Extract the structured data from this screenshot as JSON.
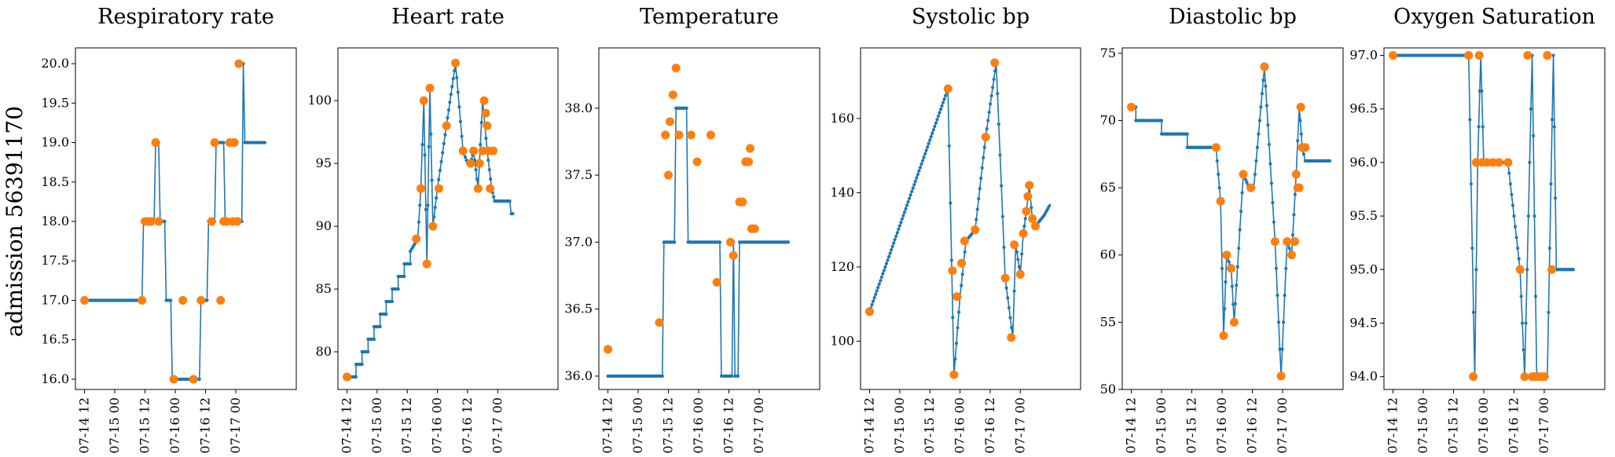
{
  "row_label": "admission 56391170",
  "x_tick_labels": [
    "07-14 12",
    "07-15 00",
    "07-15 12",
    "07-16 00",
    "07-16 12",
    "07-17 00"
  ],
  "colors": {
    "line": "#1f77b4",
    "observed": "#ff7f0e"
  },
  "chart_data": [
    {
      "type": "line",
      "title": "Respiratory rate",
      "ylim": [
        15.87,
        20.2
      ],
      "yticks": [
        16.0,
        16.5,
        17.0,
        17.5,
        18.0,
        18.5,
        19.0,
        19.5,
        20.0
      ],
      "series": [
        {
          "points": [
            [
              0,
              17
            ],
            [
              1.9,
              17
            ],
            [
              1.95,
              18
            ],
            [
              2.3,
              18
            ],
            [
              2.35,
              19
            ],
            [
              2.45,
              19
            ],
            [
              2.5,
              18
            ],
            [
              2.65,
              18
            ],
            [
              2.7,
              17
            ],
            [
              2.85,
              17
            ],
            [
              2.9,
              16
            ],
            [
              3.8,
              16
            ],
            [
              3.85,
              17
            ],
            [
              4.05,
              17
            ],
            [
              4.1,
              18
            ],
            [
              4.3,
              18
            ],
            [
              4.35,
              19
            ],
            [
              4.6,
              19
            ],
            [
              4.65,
              18
            ],
            [
              5.2,
              18
            ],
            [
              5.25,
              20
            ],
            [
              5.3,
              19
            ],
            [
              6.0,
              19
            ]
          ]
        }
      ],
      "observed": [
        [
          0,
          17
        ],
        [
          1.9,
          17
        ],
        [
          2.0,
          18
        ],
        [
          2.1,
          18
        ],
        [
          2.2,
          18
        ],
        [
          2.35,
          19
        ],
        [
          2.45,
          18
        ],
        [
          2.95,
          16
        ],
        [
          3.25,
          17
        ],
        [
          3.6,
          16
        ],
        [
          3.85,
          17
        ],
        [
          4.2,
          18
        ],
        [
          4.3,
          19
        ],
        [
          4.5,
          17
        ],
        [
          4.6,
          18
        ],
        [
          4.7,
          18
        ],
        [
          4.8,
          19
        ],
        [
          4.9,
          18
        ],
        [
          4.95,
          19
        ],
        [
          5.05,
          18
        ],
        [
          5.1,
          20
        ]
      ]
    },
    {
      "type": "line",
      "title": "Heart rate",
      "ylim": [
        77,
        104.2
      ],
      "yticks": [
        80,
        85,
        90,
        95,
        100
      ],
      "series": [
        {
          "points": [
            [
              0,
              78
            ],
            [
              0.3,
              78
            ],
            [
              0.3,
              79
            ],
            [
              0.5,
              79
            ],
            [
              0.5,
              80
            ],
            [
              0.7,
              80
            ],
            [
              0.7,
              81
            ],
            [
              0.9,
              81
            ],
            [
              0.9,
              82
            ],
            [
              1.1,
              82
            ],
            [
              1.1,
              83
            ],
            [
              1.3,
              83
            ],
            [
              1.3,
              84
            ],
            [
              1.5,
              84
            ],
            [
              1.5,
              85
            ],
            [
              1.7,
              85
            ],
            [
              1.7,
              86
            ],
            [
              1.9,
              86
            ],
            [
              1.9,
              87
            ],
            [
              2.1,
              87
            ],
            [
              2.1,
              88
            ],
            [
              2.35,
              89
            ],
            [
              2.45,
              93
            ],
            [
              2.55,
              100
            ],
            [
              2.65,
              87
            ],
            [
              2.75,
              101
            ],
            [
              2.85,
              90
            ],
            [
              3.0,
              93
            ],
            [
              3.3,
              98
            ],
            [
              3.6,
              103
            ],
            [
              3.85,
              96
            ],
            [
              4.0,
              95
            ],
            [
              4.1,
              95
            ],
            [
              4.2,
              96
            ],
            [
              4.35,
              93
            ],
            [
              4.5,
              100
            ],
            [
              4.65,
              96
            ],
            [
              4.8,
              93
            ],
            [
              4.9,
              92
            ],
            [
              5.4,
              92
            ],
            [
              5.45,
              91
            ],
            [
              5.55,
              91
            ]
          ]
        }
      ],
      "observed": [
        [
          0,
          78
        ],
        [
          2.3,
          89
        ],
        [
          2.45,
          93
        ],
        [
          2.55,
          100
        ],
        [
          2.65,
          87
        ],
        [
          2.75,
          101
        ],
        [
          2.85,
          90
        ],
        [
          3.05,
          93
        ],
        [
          3.3,
          98
        ],
        [
          3.6,
          103
        ],
        [
          3.85,
          96
        ],
        [
          4.1,
          95
        ],
        [
          4.2,
          96
        ],
        [
          4.35,
          93
        ],
        [
          4.4,
          95
        ],
        [
          4.5,
          96
        ],
        [
          4.55,
          100
        ],
        [
          4.6,
          99
        ],
        [
          4.65,
          98
        ],
        [
          4.7,
          96
        ],
        [
          4.75,
          93
        ],
        [
          4.85,
          96
        ]
      ]
    },
    {
      "type": "line",
      "title": "Temperature",
      "ylim": [
        35.9,
        38.45
      ],
      "yticks": [
        36.0,
        36.5,
        37.0,
        37.5,
        38.0
      ],
      "series": [
        {
          "points": [
            [
              0,
              36
            ],
            [
              1.8,
              36
            ],
            [
              1.85,
              37
            ],
            [
              2.2,
              37
            ],
            [
              2.25,
              38
            ],
            [
              2.6,
              38
            ],
            [
              2.65,
              37
            ],
            [
              3.7,
              37
            ],
            [
              3.75,
              36
            ],
            [
              4.1,
              36
            ],
            [
              4.15,
              37
            ],
            [
              4.2,
              36
            ],
            [
              4.3,
              36
            ],
            [
              4.35,
              37
            ],
            [
              6.0,
              37
            ]
          ]
        }
      ],
      "observed": [
        [
          0,
          36.2
        ],
        [
          1.7,
          36.4
        ],
        [
          1.9,
          37.8
        ],
        [
          2.0,
          37.5
        ],
        [
          2.05,
          37.9
        ],
        [
          2.15,
          38.1
        ],
        [
          2.25,
          38.3
        ],
        [
          2.35,
          37.8
        ],
        [
          2.75,
          37.8
        ],
        [
          2.95,
          37.6
        ],
        [
          3.4,
          37.8
        ],
        [
          3.6,
          36.7
        ],
        [
          4.05,
          37
        ],
        [
          4.15,
          36.9
        ],
        [
          4.35,
          37.3
        ],
        [
          4.45,
          37.3
        ],
        [
          4.55,
          37.6
        ],
        [
          4.6,
          37.6
        ],
        [
          4.65,
          37.6
        ],
        [
          4.7,
          37.7
        ],
        [
          4.75,
          37.1
        ],
        [
          4.85,
          37.1
        ]
      ]
    },
    {
      "type": "line",
      "title": "Systolic bp",
      "ylim": [
        87,
        179
      ],
      "yticks": [
        100,
        120,
        140,
        160
      ],
      "series": [
        {
          "points": [
            [
              0,
              108
            ],
            [
              2.6,
              168
            ],
            [
              2.8,
              91
            ],
            [
              3.0,
              112
            ],
            [
              3.2,
              127
            ],
            [
              3.5,
              130
            ],
            [
              3.85,
              155
            ],
            [
              4.2,
              175
            ],
            [
              4.5,
              117
            ],
            [
              4.75,
              101
            ],
            [
              4.85,
              126
            ],
            [
              5.0,
              118
            ],
            [
              5.1,
              129
            ],
            [
              5.2,
              135
            ],
            [
              5.3,
              142
            ],
            [
              5.4,
              133
            ],
            [
              5.5,
              131
            ],
            [
              5.8,
              134
            ],
            [
              6.0,
              137
            ]
          ]
        }
      ],
      "observed": [
        [
          0,
          108
        ],
        [
          2.6,
          168
        ],
        [
          2.75,
          119
        ],
        [
          2.8,
          91
        ],
        [
          2.9,
          112
        ],
        [
          3.05,
          121
        ],
        [
          3.15,
          127
        ],
        [
          3.5,
          130
        ],
        [
          3.85,
          155
        ],
        [
          4.15,
          175
        ],
        [
          4.5,
          117
        ],
        [
          4.7,
          101
        ],
        [
          4.8,
          126
        ],
        [
          5.0,
          118
        ],
        [
          5.1,
          129
        ],
        [
          5.2,
          135
        ],
        [
          5.25,
          139
        ],
        [
          5.3,
          142
        ],
        [
          5.4,
          133
        ],
        [
          5.5,
          131
        ]
      ]
    },
    {
      "type": "line",
      "title": "Diastolic bp",
      "ylim": [
        50,
        75.4
      ],
      "yticks": [
        50,
        55,
        60,
        65,
        70,
        75
      ],
      "series": [
        {
          "points": [
            [
              0,
              71
            ],
            [
              0.15,
              71
            ],
            [
              0.15,
              70
            ],
            [
              1.0,
              70
            ],
            [
              1.0,
              69
            ],
            [
              1.85,
              69
            ],
            [
              1.85,
              68
            ],
            [
              2.8,
              68
            ],
            [
              2.95,
              64
            ],
            [
              3.05,
              54
            ],
            [
              3.15,
              60
            ],
            [
              3.3,
              59
            ],
            [
              3.4,
              55
            ],
            [
              3.7,
              66
            ],
            [
              3.9,
              65
            ],
            [
              4.05,
              65
            ],
            [
              4.4,
              74
            ],
            [
              4.75,
              61
            ],
            [
              4.95,
              51
            ],
            [
              5.15,
              61
            ],
            [
              5.3,
              60
            ],
            [
              5.45,
              66
            ],
            [
              5.55,
              71
            ],
            [
              5.65,
              68
            ],
            [
              5.75,
              67
            ],
            [
              6.6,
              67
            ]
          ]
        }
      ],
      "observed": [
        [
          0,
          71
        ],
        [
          2.8,
          68
        ],
        [
          2.95,
          64
        ],
        [
          3.05,
          54
        ],
        [
          3.15,
          60
        ],
        [
          3.3,
          59
        ],
        [
          3.4,
          55
        ],
        [
          3.7,
          66
        ],
        [
          3.95,
          65
        ],
        [
          4.4,
          74
        ],
        [
          4.75,
          61
        ],
        [
          4.95,
          51
        ],
        [
          5.15,
          61
        ],
        [
          5.3,
          60
        ],
        [
          5.4,
          61
        ],
        [
          5.45,
          66
        ],
        [
          5.5,
          65
        ],
        [
          5.55,
          65
        ],
        [
          5.6,
          71
        ],
        [
          5.65,
          68
        ],
        [
          5.75,
          68
        ]
      ]
    },
    {
      "type": "line",
      "title": "Oxygen Saturation",
      "ylim": [
        93.88,
        97.07
      ],
      "yticks": [
        94.0,
        94.5,
        95.0,
        95.5,
        96.0,
        96.5,
        97.0
      ],
      "series": [
        {
          "points": [
            [
              0,
              97
            ],
            [
              2.5,
              97
            ],
            [
              2.7,
              94
            ],
            [
              2.8,
              96
            ],
            [
              2.9,
              97
            ],
            [
              3.0,
              96
            ],
            [
              3.6,
              96
            ],
            [
              3.8,
              96
            ],
            [
              4.2,
              95
            ],
            [
              4.35,
              94
            ],
            [
              4.6,
              97
            ],
            [
              4.75,
              94
            ],
            [
              5.1,
              94
            ],
            [
              5.3,
              97
            ],
            [
              5.4,
              95
            ],
            [
              6.0,
              95
            ]
          ]
        }
      ],
      "observed": [
        [
          0,
          97
        ],
        [
          2.5,
          97
        ],
        [
          2.65,
          94
        ],
        [
          2.75,
          96
        ],
        [
          2.85,
          97
        ],
        [
          2.95,
          96
        ],
        [
          3.1,
          96
        ],
        [
          3.3,
          96
        ],
        [
          3.5,
          96
        ],
        [
          3.8,
          96
        ],
        [
          4.2,
          95
        ],
        [
          4.35,
          94
        ],
        [
          4.45,
          97
        ],
        [
          4.6,
          94
        ],
        [
          4.7,
          94
        ],
        [
          4.8,
          94
        ],
        [
          4.9,
          94
        ],
        [
          5.0,
          94
        ],
        [
          5.1,
          97
        ],
        [
          5.25,
          95
        ]
      ]
    }
  ]
}
